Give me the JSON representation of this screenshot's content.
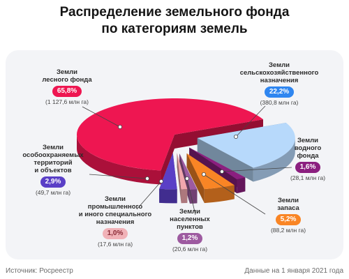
{
  "title_line1": "Распределение земельного фонда",
  "title_line2": "по категориям земель",
  "footer": {
    "source": "Источник: Росреестр",
    "date": "Данные на 1 января 2021 года"
  },
  "chart_data": {
    "type": "pie",
    "slices": [
      {
        "name_lines": [
          "Земли",
          "лесного фонда"
        ],
        "percent": 65.8,
        "percent_label": "65,8%",
        "area_label": "(1 127,6 млн га)",
        "color": "#ee1651",
        "badge_bg": "#ee1651",
        "badge_fg": "#ffffff"
      },
      {
        "name_lines": [
          "Земли",
          "сельскохозяйственного",
          "назначения"
        ],
        "percent": 22.2,
        "percent_label": "22,2%",
        "area_label": "(380,8 млн га)",
        "color": "#b7d9fb",
        "badge_bg": "#2f86f0",
        "badge_fg": "#ffffff"
      },
      {
        "name_lines": [
          "Земли",
          "водного",
          "фонда"
        ],
        "percent": 1.6,
        "percent_label": "1,6%",
        "area_label": "(28,1 млн га)",
        "color": "#8b1f7f",
        "badge_bg": "#8b1f7f",
        "badge_fg": "#ffffff"
      },
      {
        "name_lines": [
          "Земли",
          "запаса"
        ],
        "percent": 5.2,
        "percent_label": "5,2%",
        "area_label": "(88,2 млн га)",
        "color": "#f98525",
        "badge_bg": "#f98525",
        "badge_fg": "#ffffff"
      },
      {
        "name_lines": [
          "Земли",
          "населенных",
          "пунктов"
        ],
        "percent": 1.2,
        "percent_label": "1,2%",
        "area_label": "(20,6 млн га)",
        "color": "#9d5aa0",
        "badge_bg": "#9d5aa0",
        "badge_fg": "#ffffff"
      },
      {
        "name_lines": [
          "Земли",
          "промышленного",
          "и иного специального",
          "назначения"
        ],
        "percent": 1.0,
        "percent_label": "1,0%",
        "area_label": "(17,6 млн га)",
        "color": "#f0a6ad",
        "badge_bg": "#f1b2b8",
        "badge_fg": "#8a2a36"
      },
      {
        "name_lines": [
          "Земли",
          "особоохраняемых",
          "территорий",
          "и объектов"
        ],
        "percent": 2.9,
        "percent_label": "2,9%",
        "area_label": "(49,7 млн га)",
        "color": "#5a3fc6",
        "badge_bg": "#5a3fc6",
        "badge_fg": "#ffffff"
      }
    ]
  }
}
